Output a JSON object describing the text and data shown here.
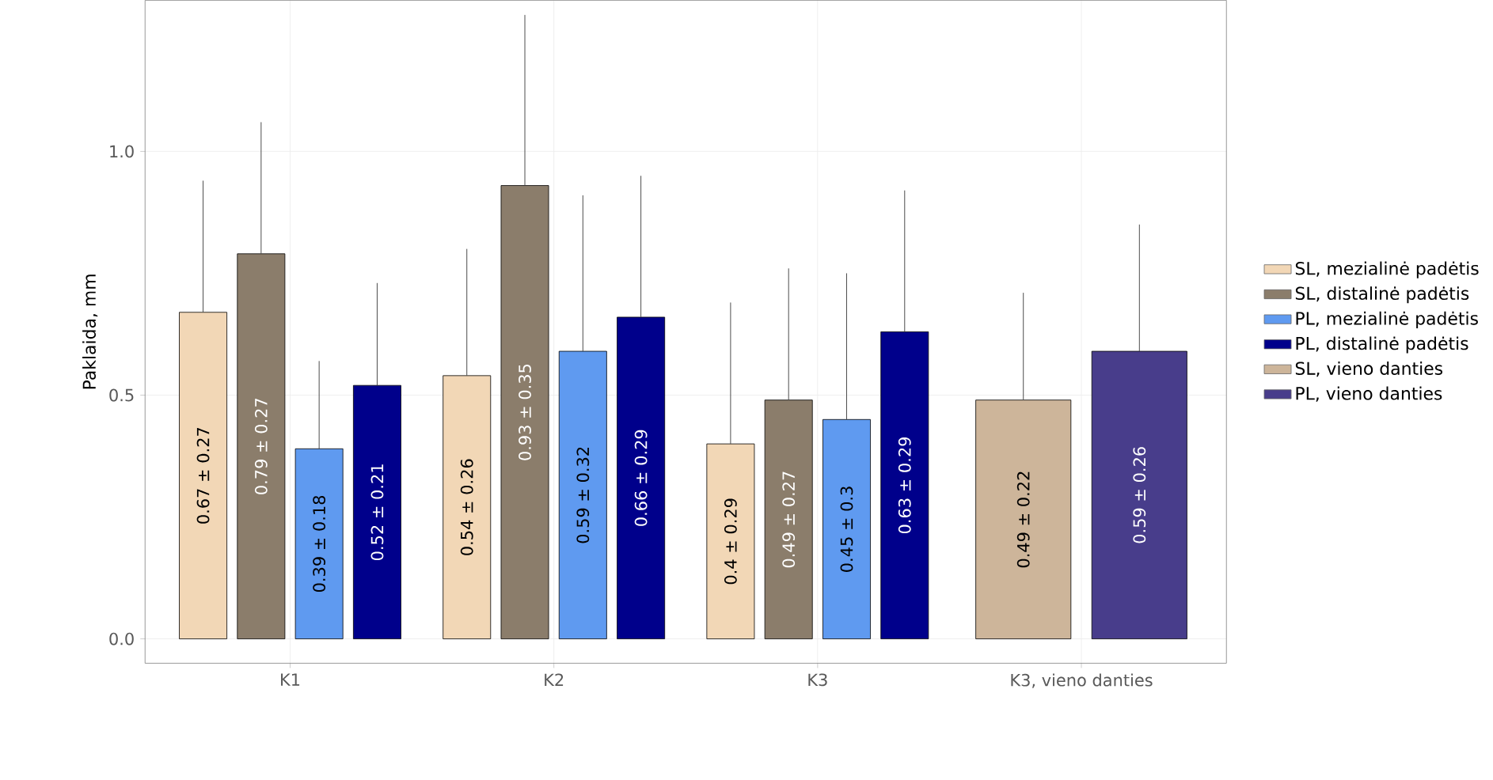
{
  "chart_data": {
    "type": "bar",
    "ylabel": "Paklaida, mm",
    "categories": [
      "K1",
      "K2",
      "K3",
      "K3, vieno danties"
    ],
    "series": [
      {
        "name": "SL, mezialinė padėtis",
        "color": "#f2d7b6",
        "values": [
          0.67,
          0.54,
          0.4,
          null
        ],
        "errors": [
          [
            0.67,
            0.94
          ],
          [
            0.54,
            0.8
          ],
          [
            0.4,
            0.69
          ],
          null
        ],
        "value_labels": [
          "0.67 ± 0.27",
          "0.54 ± 0.26",
          "0.4 ± 0.29",
          null
        ]
      },
      {
        "name": "SL, distalinė padėtis",
        "color": "#8b7d6b",
        "values": [
          0.79,
          0.93,
          0.49,
          null
        ],
        "errors": [
          [
            0.79,
            1.06
          ],
          [
            0.93,
            1.28
          ],
          [
            0.49,
            0.76
          ],
          null
        ],
        "value_labels": [
          "0.79 ± 0.27",
          "0.93 ± 0.35",
          "0.49 ± 0.27",
          null
        ]
      },
      {
        "name": "PL, mezialinė padėtis",
        "color": "#5f9af0",
        "values": [
          0.39,
          0.59,
          0.45,
          null
        ],
        "errors": [
          [
            0.39,
            0.57
          ],
          [
            0.59,
            0.91
          ],
          [
            0.45,
            0.75
          ],
          null
        ],
        "value_labels": [
          "0.39 ± 0.18",
          "0.59 ± 0.32",
          "0.45 ± 0.3",
          null
        ]
      },
      {
        "name": "PL, distalinė padėtis",
        "color": "#00008b",
        "values": [
          0.52,
          0.66,
          0.63,
          null
        ],
        "errors": [
          [
            0.52,
            0.73
          ],
          [
            0.66,
            0.95
          ],
          [
            0.63,
            0.92
          ],
          null
        ],
        "value_labels": [
          "0.52 ± 0.21",
          "0.66 ± 0.29",
          "0.63 ± 0.29",
          null
        ]
      },
      {
        "name": "SL, vieno danties",
        "color": "#cdb59a",
        "values": [
          null,
          null,
          null,
          0.49
        ],
        "errors": [
          null,
          null,
          null,
          [
            0.49,
            0.71
          ]
        ],
        "value_labels": [
          null,
          null,
          null,
          "0.49 ± 0.22"
        ]
      },
      {
        "name": "PL, vieno danties",
        "color": "#483d8b",
        "values": [
          null,
          null,
          null,
          0.59
        ],
        "errors": [
          null,
          null,
          null,
          [
            0.59,
            0.85
          ]
        ],
        "value_labels": [
          null,
          null,
          null,
          "0.59 ± 0.26"
        ]
      }
    ],
    "ylim": [
      -0.05,
      1.31
    ],
    "yticks": [
      {
        "value": 0,
        "label": "0.0"
      },
      {
        "value": 0.5,
        "label": "0.5"
      },
      {
        "value": 1.0,
        "label": "1.0"
      }
    ],
    "grid": true,
    "legend": "right"
  }
}
